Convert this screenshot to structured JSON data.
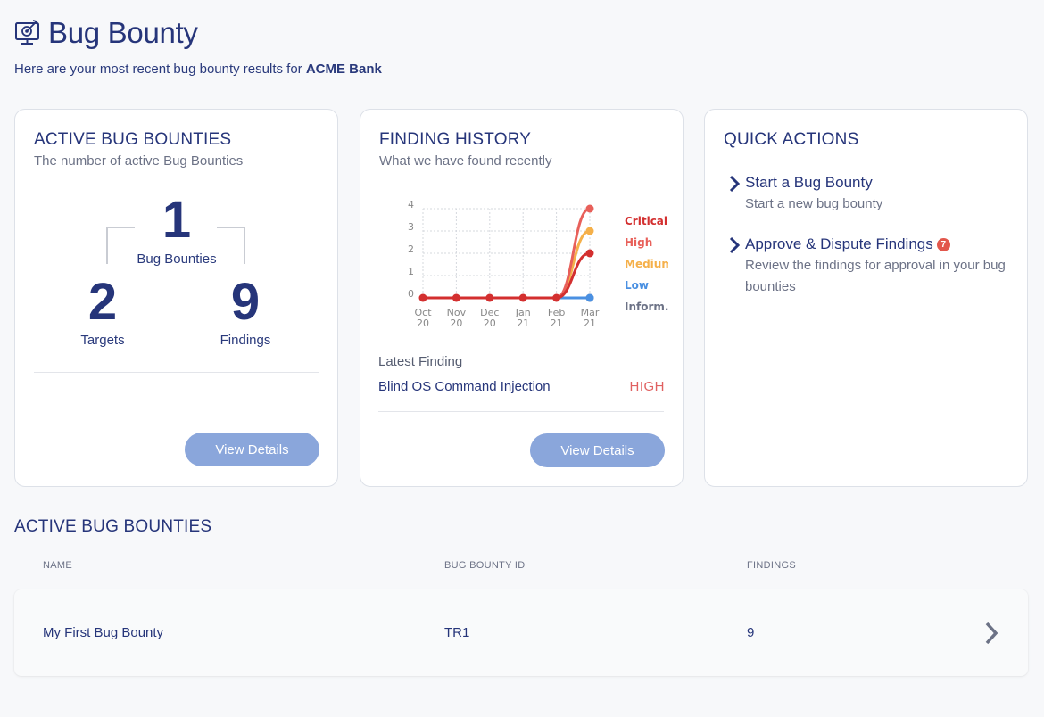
{
  "header": {
    "title": "Bug Bounty",
    "subtitle_prefix": "Here are your most recent bug bounty results for ",
    "company": "ACME Bank",
    "icon": "monitor-target-icon"
  },
  "summary_card": {
    "title": "ACTIVE BUG BOUNTIES",
    "subtitle": "The number of active Bug Bounties",
    "bounties_count": "1",
    "bounties_label": "Bug Bounties",
    "targets_count": "2",
    "targets_label": "Targets",
    "findings_count": "9",
    "findings_label": "Findings",
    "button_label": "View Details"
  },
  "history_card": {
    "title": "FINDING HISTORY",
    "subtitle": "What we have found recently",
    "latest_label": "Latest Finding",
    "latest_name": "Blind OS Command Injection",
    "latest_severity": "HIGH",
    "button_label": "View Details"
  },
  "chart_data": {
    "type": "line",
    "x": [
      "Oct 20",
      "Nov 20",
      "Dec 20",
      "Jan 21",
      "Feb 21",
      "Mar 21"
    ],
    "ylim": [
      0,
      4
    ],
    "yticks": [
      "0",
      "1",
      "2",
      "3",
      "4"
    ],
    "grid": true,
    "legend_placement": "right",
    "series": [
      {
        "name": "Critical",
        "color": "#d32f2f",
        "values": [
          0,
          0,
          0,
          0,
          0,
          2
        ]
      },
      {
        "name": "High",
        "color": "#e8605a",
        "values": [
          0,
          0,
          0,
          0,
          0,
          4
        ]
      },
      {
        "name": "Medium",
        "color": "#f5b04a",
        "values": [
          0,
          0,
          0,
          0,
          0,
          3
        ]
      },
      {
        "name": "Low",
        "color": "#4a90e2",
        "values": [
          0,
          0,
          0,
          0,
          0,
          0
        ]
      },
      {
        "name": "Inform..",
        "color": "#6c7286",
        "values": [
          0,
          0,
          0,
          0,
          0,
          0
        ]
      }
    ]
  },
  "quick_actions": {
    "title": "QUICK ACTIONS",
    "items": [
      {
        "label": "Start a Bug Bounty",
        "description": "Start a new bug bounty",
        "badge": ""
      },
      {
        "label": "Approve & Dispute Findings",
        "description": "Review the findings for approval in your bug bounties",
        "badge": "7"
      }
    ]
  },
  "table": {
    "title": "ACTIVE BUG BOUNTIES",
    "columns": [
      "NAME",
      "BUG BOUNTY ID",
      "FINDINGS"
    ],
    "rows": [
      {
        "name": "My First Bug Bounty",
        "id": "TR1",
        "findings": "9"
      }
    ]
  }
}
